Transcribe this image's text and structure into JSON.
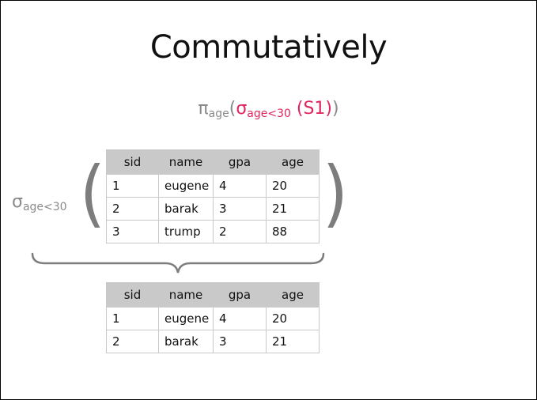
{
  "slide": {
    "title": "Commutatively",
    "expression": {
      "pi": "π",
      "pi_sub": "age",
      "open": "(",
      "sigma": "σ",
      "sigma_sub": "age<30",
      "relation": " (S1)",
      "close": ")"
    },
    "left_selection": {
      "sigma": "σ",
      "sigma_sub": "age<30"
    },
    "paren_left": "(",
    "paren_right": ")",
    "colors": {
      "accent_red": "#e0245e",
      "gray_text": "#8a8a8a",
      "header_fill": "#c9c9c9"
    }
  },
  "table_top": {
    "headers": [
      "sid",
      "name",
      "gpa",
      "age"
    ],
    "rows": [
      [
        "1",
        "eugene",
        "4",
        "20"
      ],
      [
        "2",
        "barak",
        "3",
        "21"
      ],
      [
        "3",
        "trump",
        "2",
        "88"
      ]
    ]
  },
  "table_bottom": {
    "headers": [
      "sid",
      "name",
      "gpa",
      "age"
    ],
    "rows": [
      [
        "1",
        "eugene",
        "4",
        "20"
      ],
      [
        "2",
        "barak",
        "3",
        "21"
      ]
    ]
  }
}
